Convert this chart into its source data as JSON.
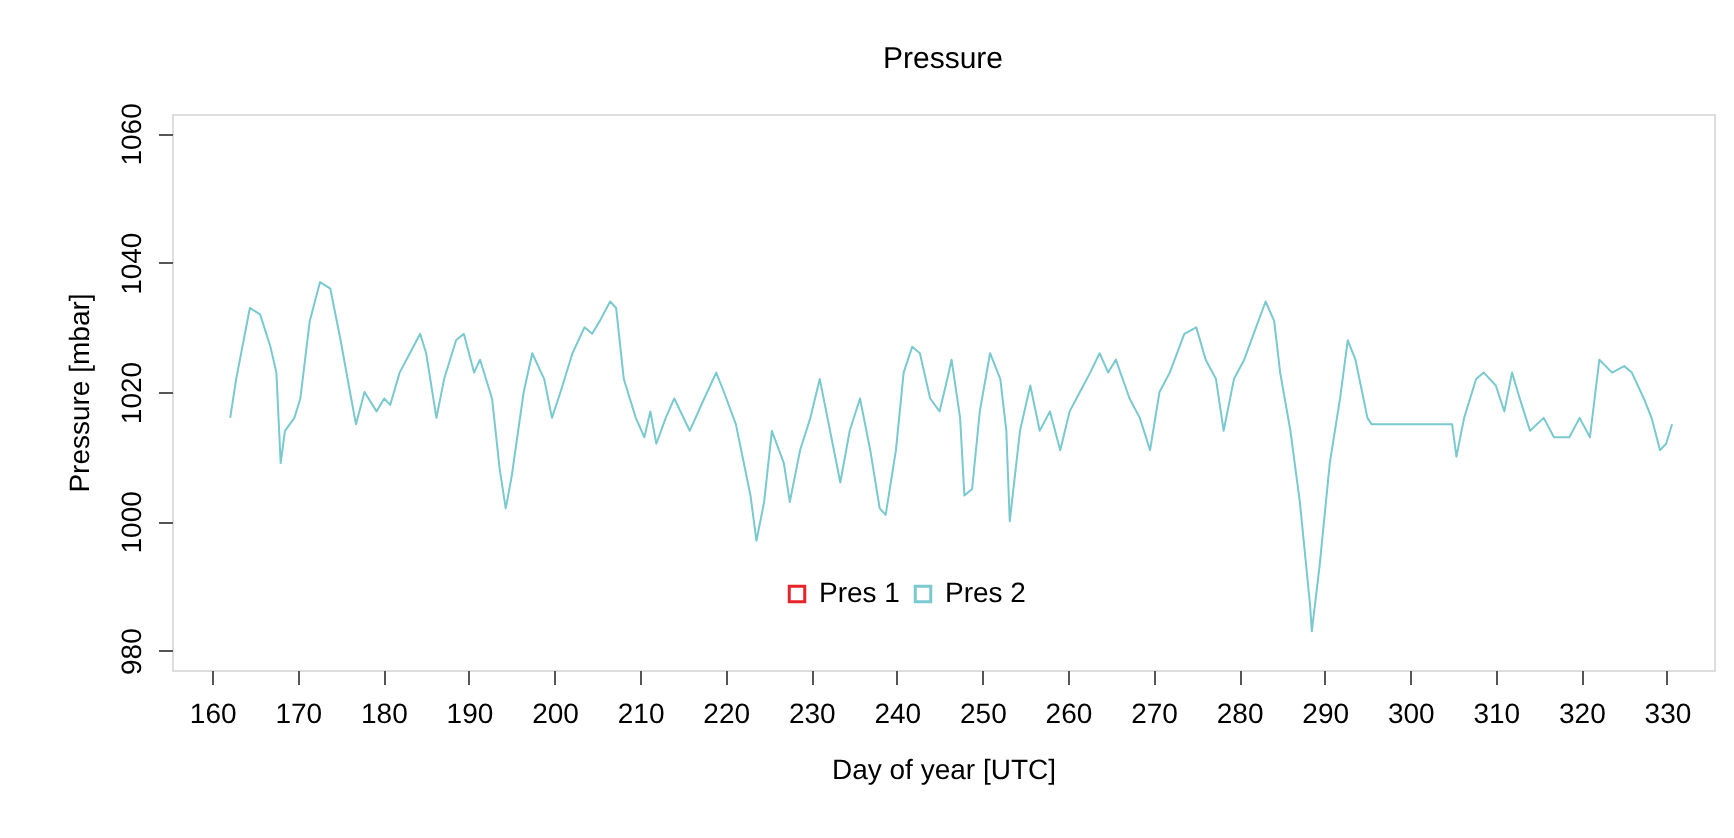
{
  "chart_data": {
    "type": "line",
    "title": "Pressure",
    "xlabel": "Day of year [UTC]",
    "ylabel": "Pressure [mbar]",
    "xlim": [
      155.3,
      335.5
    ],
    "ylim": [
      977,
      1063
    ],
    "xticks": [
      160,
      170,
      180,
      190,
      200,
      210,
      220,
      230,
      240,
      250,
      260,
      270,
      280,
      290,
      300,
      310,
      320,
      330
    ],
    "yticks": [
      980,
      1000,
      1020,
      1040,
      1060
    ],
    "grid": false,
    "legend": "bottom",
    "marker": "none",
    "line_style": "solid",
    "series": [
      {
        "name": "Pres 1",
        "color": "#e8242a"
      },
      {
        "name": "Pres 2",
        "color": "#79c9cf",
        "x": [
          162.1,
          162.8,
          164.4,
          165.6,
          166.8,
          167.5,
          168,
          168.5,
          169.6,
          170.3,
          171.4,
          172.6,
          173.8,
          175,
          176.1,
          176.8,
          177.8,
          179.2,
          180.1,
          180.8,
          181.9,
          183.1,
          184.3,
          185,
          186.2,
          187.1,
          188.5,
          189.4,
          190.6,
          191.3,
          192.7,
          193.6,
          194.3,
          195,
          196.4,
          197.4,
          198.8,
          199.7,
          200.7,
          202.1,
          203.5,
          204.4,
          205.3,
          206.5,
          207.2,
          208.1,
          209.5,
          210.5,
          211.2,
          211.9,
          213,
          214,
          215.8,
          217.5,
          218.9,
          219.8,
          221.2,
          222.9,
          223.6,
          224.5,
          225.4,
          226.8,
          227.5,
          228.7,
          229.9,
          231,
          232.2,
          233.4,
          234.5,
          235.7,
          236.9,
          238,
          238.7,
          239.9,
          240.8,
          241.8,
          242.7,
          243.9,
          245,
          245.9,
          246.4,
          247.4,
          247.9,
          248.8,
          249.7,
          250.9,
          252.1,
          252.8,
          253.2,
          254.4,
          255.6,
          256.7,
          257.9,
          259.1,
          260.2,
          261.4,
          262.6,
          263.7,
          264.7,
          265.6,
          267.2,
          268.4,
          269.6,
          270.7,
          271.9,
          273.6,
          275,
          276.1,
          277.3,
          278.2,
          279.4,
          280.6,
          281.7,
          283.1,
          284.1,
          284.8,
          286,
          287.1,
          288.3,
          288.5,
          289.4,
          290.6,
          291.8,
          292.7,
          293.6,
          295,
          295.5,
          304.9,
          305.4,
          306.3,
          307.7,
          308.6,
          310,
          311,
          311.9,
          312.8,
          314,
          315.6,
          316.8,
          318.6,
          319.8,
          321,
          322.1,
          323.6,
          325,
          325.9,
          327.3,
          328.2,
          329.2,
          329.9,
          330.6
        ],
        "values": [
          1016,
          1022,
          1033,
          1032,
          1027,
          1023,
          1009,
          1014,
          1016,
          1019,
          1031,
          1037,
          1036,
          1028,
          1020,
          1015,
          1020,
          1017,
          1019,
          1018,
          1023,
          1026,
          1029,
          1026,
          1016,
          1022,
          1028,
          1029,
          1023,
          1025,
          1019,
          1008,
          1002,
          1007,
          1020,
          1026,
          1022,
          1016,
          1020,
          1026,
          1030,
          1029,
          1031,
          1034,
          1033,
          1022,
          1016,
          1013,
          1017,
          1012,
          1016,
          1019,
          1014,
          1019,
          1023,
          1020,
          1015,
          1004,
          997,
          1003,
          1014,
          1009,
          1003,
          1011,
          1016,
          1022,
          1014,
          1006,
          1014,
          1019,
          1011,
          1002,
          1001,
          1011,
          1023,
          1027,
          1026,
          1019,
          1017,
          1022,
          1025,
          1016,
          1004,
          1005,
          1017,
          1026,
          1022,
          1014,
          1000,
          1014,
          1021,
          1014,
          1017,
          1011,
          1017,
          1020,
          1023,
          1026,
          1023,
          1025,
          1019,
          1016,
          1011,
          1020,
          1023,
          1029,
          1030,
          1025,
          1022,
          1014,
          1022,
          1025,
          1029,
          1034,
          1031,
          1023,
          1014,
          1003,
          987,
          983,
          993,
          1009,
          1019,
          1028,
          1025,
          1016,
          1015,
          1015,
          1010,
          1016,
          1022,
          1023,
          1021,
          1017,
          1023,
          1019,
          1014,
          1016,
          1013,
          1013,
          1016,
          1013,
          1025,
          1023,
          1024,
          1023,
          1019,
          1016,
          1011,
          1012,
          1015
        ]
      }
    ]
  }
}
